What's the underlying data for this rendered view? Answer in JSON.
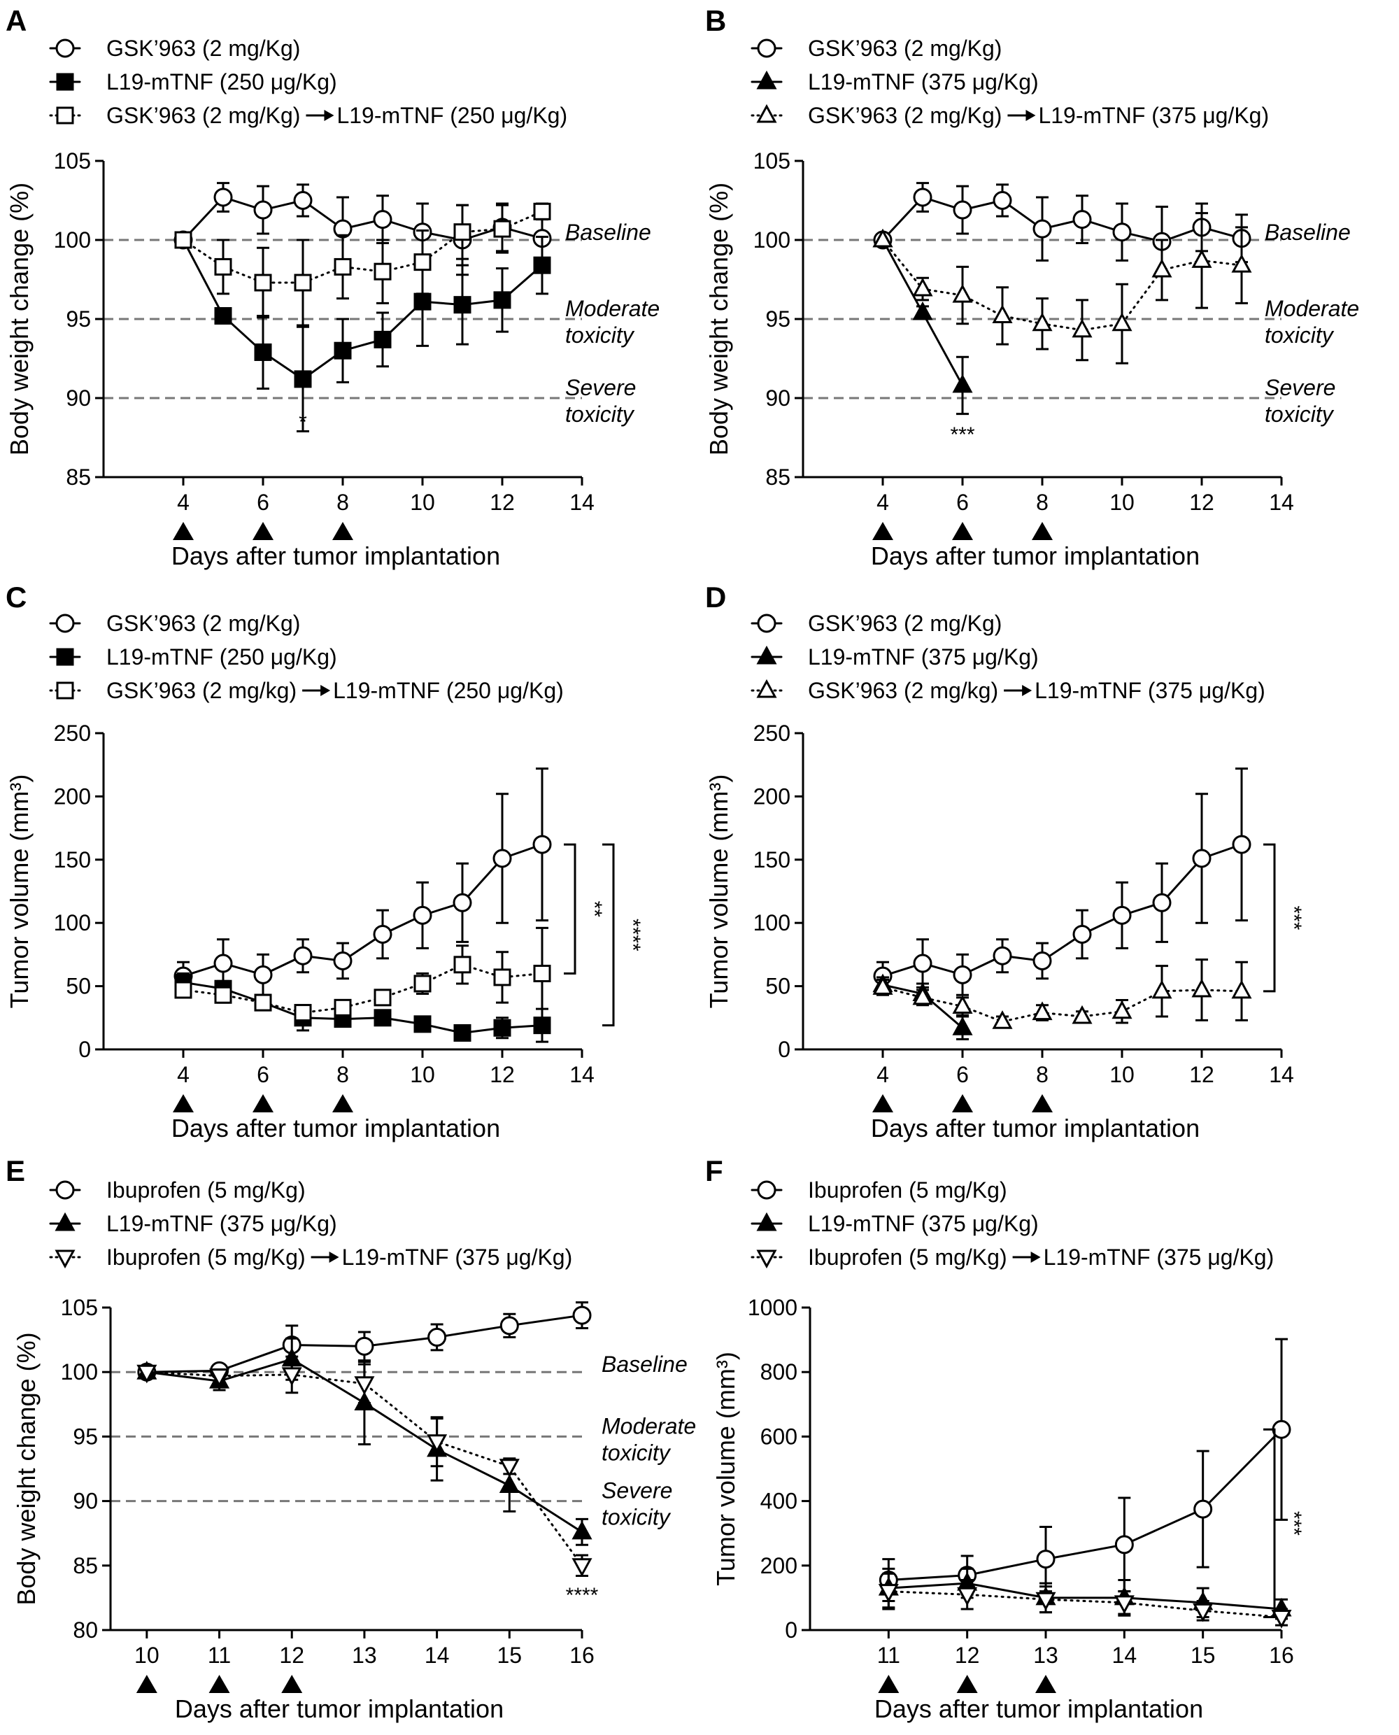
{
  "figure": {
    "panels": [
      {
        "letter": "A"
      },
      {
        "letter": "B"
      },
      {
        "letter": "C"
      },
      {
        "letter": "D"
      },
      {
        "letter": "E"
      },
      {
        "letter": "F"
      }
    ]
  },
  "chart_data": [
    {
      "panel": "A",
      "type": "line",
      "xlabel": "Days after tumor implantation",
      "ylabel": "Body weight change (%)",
      "xlim": [
        2,
        14
      ],
      "xticks": [
        4,
        6,
        8,
        10,
        12,
        14
      ],
      "ylim": [
        85,
        105
      ],
      "yticks": [
        85,
        90,
        95,
        100,
        105
      ],
      "legend_position": "top-left",
      "series": [
        {
          "name": "GSK’963 (2 mg/Kg)",
          "marker": "circle",
          "filled": false,
          "line": "solid",
          "x": [
            4,
            5,
            6,
            7,
            8,
            9,
            10,
            11,
            12,
            13
          ],
          "y": [
            100,
            102.7,
            101.9,
            102.5,
            100.7,
            101.3,
            100.5,
            100.0,
            100.8,
            100.1
          ],
          "err": [
            0,
            0.9,
            1.5,
            1.0,
            2.0,
            1.5,
            1.8,
            2.2,
            1.5,
            1.5
          ]
        },
        {
          "name": "L19-mTNF (250 μg/Kg)",
          "marker": "square",
          "filled": true,
          "line": "solid",
          "x": [
            4,
            5,
            6,
            7,
            8,
            9,
            10,
            11,
            12,
            13
          ],
          "y": [
            100,
            95.2,
            92.9,
            91.2,
            93.0,
            93.7,
            96.1,
            95.9,
            96.2,
            98.4
          ],
          "err": [
            0,
            0.4,
            2.3,
            3.3,
            2.0,
            1.7,
            2.8,
            2.5,
            2.0,
            1.8
          ]
        },
        {
          "name": "GSK’963 (2 mg/Kg)→L19-mTNF (250 μg/Kg)",
          "marker": "square",
          "filled": false,
          "line": "dotted",
          "x": [
            4,
            5,
            6,
            7,
            8,
            9,
            10,
            11,
            12,
            13
          ],
          "y": [
            100,
            98.3,
            97.3,
            97.3,
            98.3,
            98.0,
            98.6,
            100.5,
            100.7,
            101.8
          ],
          "err": [
            0,
            1.7,
            2.2,
            2.7,
            2.0,
            2.0,
            2.0,
            1.7,
            1.5,
            0.5
          ]
        }
      ],
      "reference_lines": [
        {
          "y": 100,
          "label_lines": [
            "Baseline"
          ]
        },
        {
          "y": 95,
          "label_lines": [
            "Moderate",
            "toxicity"
          ]
        },
        {
          "y": 90,
          "label_lines": [
            "Severe",
            "toxicity"
          ]
        }
      ],
      "treatment_days": [
        4,
        6,
        8
      ],
      "annotations": [
        {
          "text": "*",
          "x": 7,
          "y": 88.5
        }
      ]
    },
    {
      "panel": "B",
      "type": "line",
      "xlabel": "Days after tumor implantation",
      "ylabel": "Body weight change (%)",
      "xlim": [
        2,
        14
      ],
      "xticks": [
        4,
        6,
        8,
        10,
        12,
        14
      ],
      "ylim": [
        85,
        105
      ],
      "yticks": [
        85,
        90,
        95,
        100,
        105
      ],
      "legend_position": "top-left",
      "series": [
        {
          "name": "GSK’963 (2 mg/Kg)",
          "marker": "circle",
          "filled": false,
          "line": "solid",
          "x": [
            4,
            5,
            6,
            7,
            8,
            9,
            10,
            11,
            12,
            13
          ],
          "y": [
            100,
            102.7,
            101.9,
            102.5,
            100.7,
            101.3,
            100.5,
            99.9,
            100.8,
            100.1
          ],
          "err": [
            0,
            0.9,
            1.5,
            1.0,
            2.0,
            1.5,
            1.8,
            2.2,
            1.5,
            1.5
          ]
        },
        {
          "name": "L19-mTNF (375 μg/Kg)",
          "marker": "triangle-up",
          "filled": true,
          "line": "solid",
          "x": [
            4,
            5,
            6
          ],
          "y": [
            100,
            95.4,
            90.8
          ],
          "err": [
            0,
            0.4,
            1.8
          ]
        },
        {
          "name": "GSK’963 (2 mg/Kg)→L19-mTNF (375 μg/Kg)",
          "marker": "triangle-up",
          "filled": false,
          "line": "dotted",
          "x": [
            4,
            5,
            6,
            7,
            8,
            9,
            10,
            11,
            12,
            13
          ],
          "y": [
            100,
            96.9,
            96.5,
            95.2,
            94.7,
            94.3,
            94.7,
            98.1,
            98.7,
            98.4
          ],
          "err": [
            0,
            0.7,
            1.8,
            1.8,
            1.6,
            1.9,
            2.5,
            1.9,
            3.0,
            2.4
          ]
        }
      ],
      "reference_lines": [
        {
          "y": 100,
          "label_lines": [
            "Baseline"
          ]
        },
        {
          "y": 95,
          "label_lines": [
            "Moderate",
            "toxicity"
          ]
        },
        {
          "y": 90,
          "label_lines": [
            "Severe",
            "toxicity"
          ]
        }
      ],
      "treatment_days": [
        4,
        6,
        8
      ],
      "annotations": [
        {
          "text": "***",
          "x": 6,
          "y": 87.7
        }
      ]
    },
    {
      "panel": "C",
      "type": "line",
      "xlabel": "Days after tumor implantation",
      "ylabel": "Tumor volume (mm³)",
      "xlim": [
        2,
        14
      ],
      "xticks": [
        4,
        6,
        8,
        10,
        12,
        14
      ],
      "ylim": [
        0,
        250
      ],
      "yticks": [
        0,
        50,
        100,
        150,
        200,
        250
      ],
      "legend_position": "top-left",
      "series": [
        {
          "name": "GSK’963 (2 mg/Kg)",
          "marker": "circle",
          "filled": false,
          "line": "solid",
          "x": [
            4,
            5,
            6,
            7,
            8,
            9,
            10,
            11,
            12,
            13
          ],
          "y": [
            58,
            68,
            59,
            74,
            70,
            91,
            106,
            116,
            151,
            162
          ],
          "err": [
            11,
            19,
            16,
            13,
            14,
            19,
            26,
            31,
            51,
            60
          ]
        },
        {
          "name": "L19-mTNF (250 μg/Kg)",
          "marker": "square",
          "filled": true,
          "line": "solid",
          "x": [
            4,
            5,
            6,
            7,
            8,
            9,
            10,
            11,
            12,
            13
          ],
          "y": [
            53,
            48,
            37,
            25,
            24,
            25,
            20,
            13,
            17,
            19
          ],
          "err": [
            7,
            6,
            5,
            10,
            4,
            3,
            5,
            4,
            8,
            13
          ]
        },
        {
          "name": "GSK’963 (2 mg/kg)→L19-mTNF (250 μg/Kg)",
          "marker": "square",
          "filled": false,
          "line": "dotted",
          "x": [
            4,
            5,
            6,
            7,
            8,
            9,
            10,
            11,
            12,
            13
          ],
          "y": [
            47,
            43,
            37,
            29,
            33,
            41,
            52,
            67,
            57,
            60
          ],
          "err": [
            6,
            6,
            5,
            5,
            5,
            5,
            8,
            15,
            20,
            36
          ]
        }
      ],
      "treatment_days": [
        4,
        6,
        8
      ],
      "significance": [
        {
          "text": "**",
          "from_y": 60,
          "to_y": 162
        },
        {
          "text": "****",
          "from_y": 19,
          "to_y": 162
        }
      ]
    },
    {
      "panel": "D",
      "type": "line",
      "xlabel": "Days after tumor implantation",
      "ylabel": "Tumor volume (mm³)",
      "xlim": [
        2,
        14
      ],
      "xticks": [
        4,
        6,
        8,
        10,
        12,
        14
      ],
      "ylim": [
        0,
        250
      ],
      "yticks": [
        0,
        50,
        100,
        150,
        200,
        250
      ],
      "legend_position": "top-left",
      "series": [
        {
          "name": "GSK’963 (2 mg/Kg)",
          "marker": "circle",
          "filled": false,
          "line": "solid",
          "x": [
            4,
            5,
            6,
            7,
            8,
            9,
            10,
            11,
            12,
            13
          ],
          "y": [
            58,
            68,
            59,
            74,
            70,
            91,
            106,
            116,
            151,
            162
          ],
          "err": [
            11,
            19,
            16,
            13,
            14,
            19,
            26,
            31,
            51,
            60
          ]
        },
        {
          "name": "L19-mTNF (375 μg/Kg)",
          "marker": "triangle-up",
          "filled": true,
          "line": "solid",
          "x": [
            4,
            5,
            6
          ],
          "y": [
            51,
            44,
            17
          ],
          "err": [
            6,
            8,
            9
          ]
        },
        {
          "name": "GSK’963 (2 mg/kg)→L19-mTNF (375 μg/Kg)",
          "marker": "triangle-up",
          "filled": false,
          "line": "dotted",
          "x": [
            4,
            5,
            6,
            7,
            8,
            9,
            10,
            11,
            12,
            13
          ],
          "y": [
            49,
            41,
            34,
            22,
            29,
            26,
            30,
            46,
            47,
            46
          ],
          "err": [
            6,
            6,
            7,
            4,
            6,
            4,
            9,
            20,
            24,
            23
          ]
        }
      ],
      "treatment_days": [
        4,
        6,
        8
      ],
      "significance": [
        {
          "text": "***",
          "from_y": 46,
          "to_y": 162
        }
      ]
    },
    {
      "panel": "E",
      "type": "line",
      "xlabel": "Days after tumor implantation",
      "ylabel": "Body weight change (%)",
      "xlim": [
        9.5,
        16
      ],
      "xticks": [
        10,
        11,
        12,
        13,
        14,
        15,
        16
      ],
      "ylim": [
        80,
        105
      ],
      "yticks": [
        80,
        85,
        90,
        95,
        100,
        105
      ],
      "legend_position": "top-left",
      "series": [
        {
          "name": "Ibuprofen (5 mg/Kg)",
          "marker": "circle",
          "filled": false,
          "line": "solid",
          "x": [
            10,
            11,
            12,
            13,
            14,
            15,
            16
          ],
          "y": [
            100,
            100.1,
            102.1,
            102.0,
            102.7,
            103.6,
            104.4
          ],
          "err": [
            0.3,
            0.4,
            1.5,
            1.1,
            1.0,
            0.9,
            1.0
          ]
        },
        {
          "name": "L19-mTNF (375 μg/Kg)",
          "marker": "triangle-up",
          "filled": true,
          "line": "solid",
          "x": [
            10,
            11,
            12,
            13,
            14,
            15,
            16
          ],
          "y": [
            100,
            99.3,
            101.0,
            97.6,
            94.0,
            91.2,
            87.6
          ],
          "err": [
            0.3,
            0.7,
            1.6,
            3.2,
            2.4,
            2.0,
            1.0
          ]
        },
        {
          "name": "Ibuprofen (5 mg/Kg)→L19-mTNF (375 μg/Kg)",
          "marker": "triangle-down",
          "filled": false,
          "line": "dotted",
          "x": [
            10,
            11,
            12,
            13,
            14,
            15,
            16
          ],
          "y": [
            100,
            99.7,
            99.8,
            99.1,
            94.6,
            92.7,
            85.0
          ],
          "err": [
            0.3,
            0.5,
            1.4,
            1.5,
            1.9,
            0.6,
            0.8
          ]
        }
      ],
      "reference_lines": [
        {
          "y": 100,
          "label_lines": [
            "Baseline"
          ]
        },
        {
          "y": 95,
          "label_lines": [
            "Moderate",
            "toxicity"
          ]
        },
        {
          "y": 90,
          "label_lines": [
            "Severe",
            "toxicity"
          ]
        }
      ],
      "treatment_days": [
        10,
        11,
        12
      ],
      "annotations": [
        {
          "text": "****",
          "x": 16,
          "y": 82.7
        }
      ]
    },
    {
      "panel": "F",
      "type": "line",
      "xlabel": "Days after tumor implantation",
      "ylabel": "Tumor volume (mm³)",
      "xlim": [
        10,
        16
      ],
      "xticks": [
        11,
        12,
        13,
        14,
        15,
        16
      ],
      "ylim": [
        0,
        1000
      ],
      "yticks": [
        0,
        200,
        400,
        600,
        800,
        1000
      ],
      "legend_position": "top-left",
      "series": [
        {
          "name": "Ibuprofen (5 mg/Kg)",
          "marker": "circle",
          "filled": false,
          "line": "solid",
          "x": [
            11,
            12,
            13,
            14,
            15,
            16
          ],
          "y": [
            155,
            170,
            220,
            265,
            375,
            622
          ],
          "err": [
            65,
            60,
            100,
            145,
            180,
            280
          ]
        },
        {
          "name": "L19-mTNF (375 μg/Kg)",
          "marker": "triangle-up",
          "filled": true,
          "line": "solid",
          "x": [
            11,
            12,
            13,
            14,
            15,
            16
          ],
          "y": [
            130,
            145,
            100,
            100,
            85,
            65
          ],
          "err": [
            60,
            45,
            45,
            55,
            45,
            30
          ]
        },
        {
          "name": "Ibuprofen (5 mg/Kg)→L19-mTNF (375 μg/Kg)",
          "marker": "triangle-down",
          "filled": false,
          "line": "dotted",
          "x": [
            11,
            12,
            13,
            14,
            15,
            16
          ],
          "y": [
            120,
            110,
            95,
            85,
            60,
            40
          ],
          "err": [
            55,
            45,
            40,
            35,
            30,
            25
          ]
        }
      ],
      "treatment_days": [
        11,
        12,
        13
      ],
      "significance": [
        {
          "text": "***",
          "from_y": 40,
          "to_y": 622
        }
      ]
    }
  ]
}
